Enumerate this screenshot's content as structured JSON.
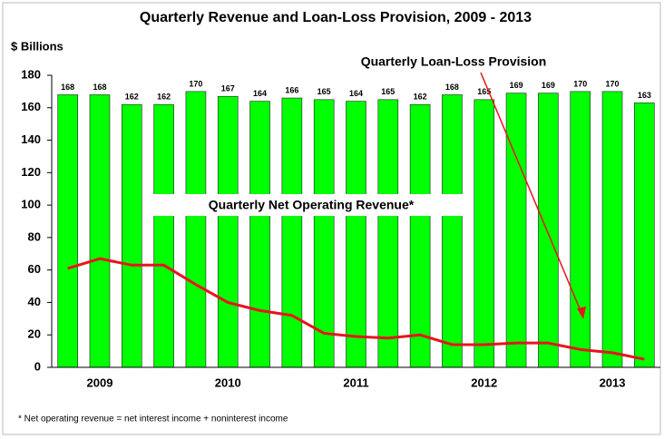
{
  "chart_data": {
    "type": "bar",
    "title": "Quarterly Revenue and Loan-Loss Provision, 2009 - 2013",
    "y_axis_label": "$ Billions",
    "categories": [
      null,
      "2009",
      null,
      null,
      null,
      "2010",
      null,
      null,
      null,
      "2011",
      null,
      null,
      null,
      "2012",
      null,
      null,
      null,
      "2013",
      null
    ],
    "series": [
      {
        "name": "Quarterly Net Operating Revenue*",
        "type": "bar",
        "color": "#00ff00",
        "values": [
          168,
          168,
          162,
          162,
          170,
          167,
          164,
          166,
          165,
          164,
          165,
          162,
          168,
          165,
          169,
          169,
          170,
          170,
          163
        ]
      },
      {
        "name": "Quarterly Loan-Loss Provision",
        "type": "line",
        "color": "#e8141b",
        "values": [
          61,
          67,
          63,
          63,
          51,
          40,
          35,
          32,
          21,
          19,
          18,
          20,
          14,
          14,
          15,
          15,
          11,
          9,
          5
        ]
      }
    ],
    "ylim": [
      0,
      180
    ],
    "yticks": [
      0,
      20,
      40,
      60,
      80,
      100,
      120,
      140,
      160,
      180
    ],
    "footnote": "* Net operating revenue = net interest income + noninterest income"
  }
}
